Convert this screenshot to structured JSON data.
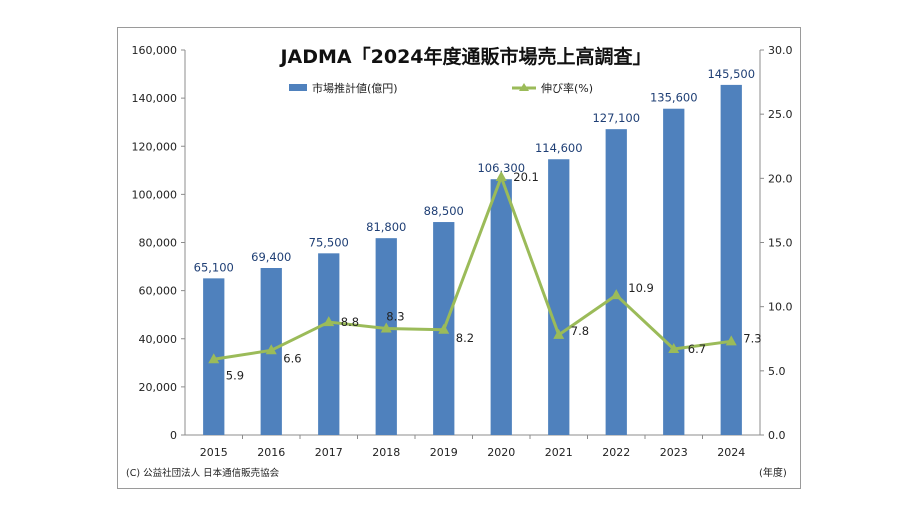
{
  "chart_data": {
    "type": "bar",
    "title": "JADMA「2024年度通販市場売上高調査」",
    "categories": [
      "2015",
      "2016",
      "2017",
      "2018",
      "2019",
      "2020",
      "2021",
      "2022",
      "2023",
      "2024"
    ],
    "series": [
      {
        "name": "市場推計値(億円)",
        "kind": "bar",
        "axis": "left",
        "color": "#4f81bd",
        "values": [
          65100,
          69400,
          75500,
          81800,
          88500,
          106300,
          114600,
          127100,
          135600,
          145500
        ],
        "labels": [
          "65,100",
          "69,400",
          "75,500",
          "81,800",
          "88,500",
          "106,300",
          "114,600",
          "127,100",
          "135,600",
          "145,500"
        ]
      },
      {
        "name": "伸び率(%)",
        "kind": "line",
        "axis": "right",
        "color": "#9bbb59",
        "values": [
          5.9,
          6.6,
          8.8,
          8.3,
          8.2,
          20.1,
          7.8,
          10.9,
          6.7,
          7.3
        ],
        "labels": [
          "5.9",
          "6.6",
          "8.8",
          "8.3",
          "8.2",
          "20.1",
          "7.8",
          "10.9",
          "6.7",
          "7.3"
        ]
      }
    ],
    "y_left": {
      "range": [
        0,
        160000
      ],
      "ticks": [
        "0",
        "20,000",
        "40,000",
        "60,000",
        "80,000",
        "100,000",
        "120,000",
        "140,000",
        "160,000"
      ]
    },
    "y_right": {
      "range": [
        0,
        30
      ],
      "ticks": [
        "0.0",
        "5.0",
        "10.0",
        "15.0",
        "20.0",
        "25.0",
        "30.0"
      ]
    },
    "x_unit_label": "(年度)",
    "legend_position": "top",
    "grid": false,
    "source": "(C) 公益社団法人 日本通信販売協会"
  }
}
